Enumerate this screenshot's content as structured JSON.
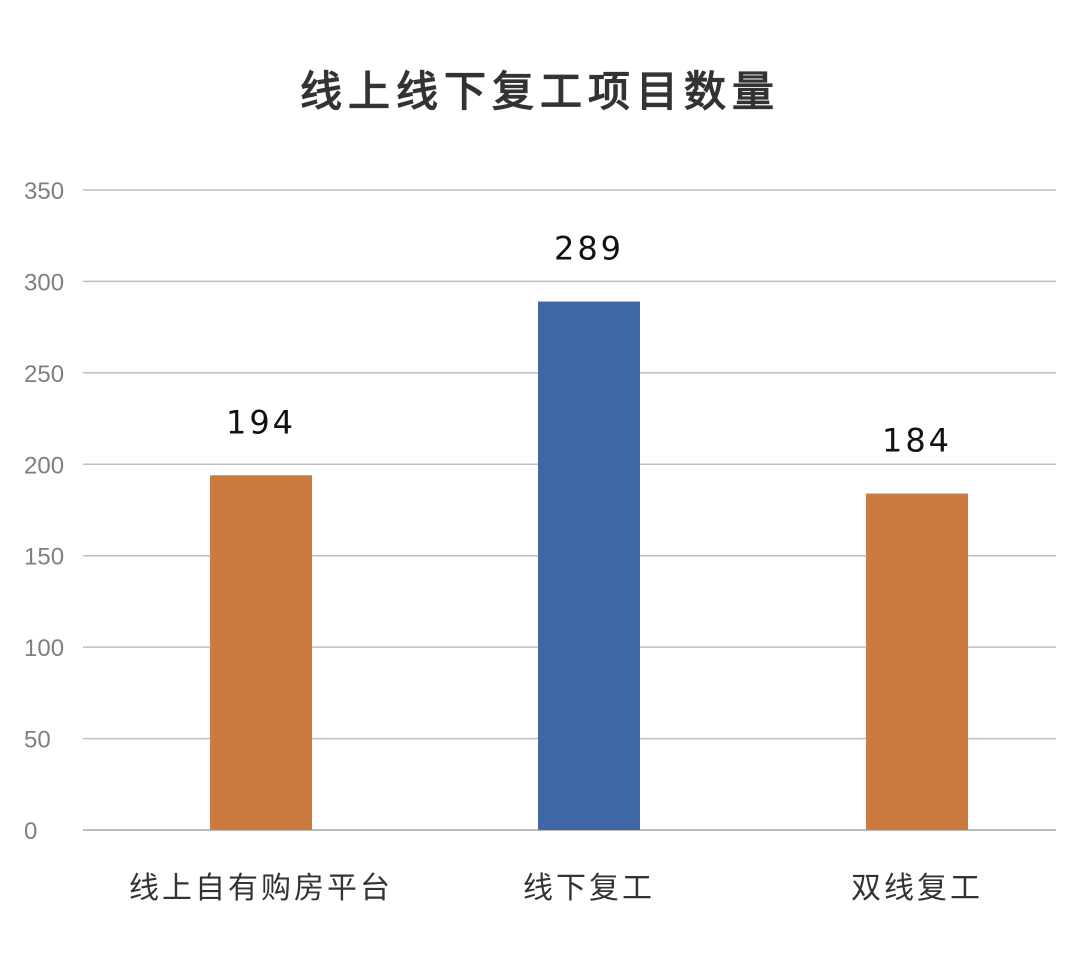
{
  "chart_data": {
    "type": "bar",
    "title": "线上线下复工项目数量",
    "categories": [
      "线上自有购房平台",
      "线下复工",
      "双线复工"
    ],
    "values": [
      194,
      289,
      184
    ],
    "ylim": [
      0,
      350
    ],
    "yticks": [
      0,
      50,
      100,
      150,
      200,
      250,
      300,
      350
    ],
    "grid": true,
    "data_labels": true,
    "colors": [
      "#CD7A41",
      "#4067A5",
      "#CD7A41"
    ]
  }
}
